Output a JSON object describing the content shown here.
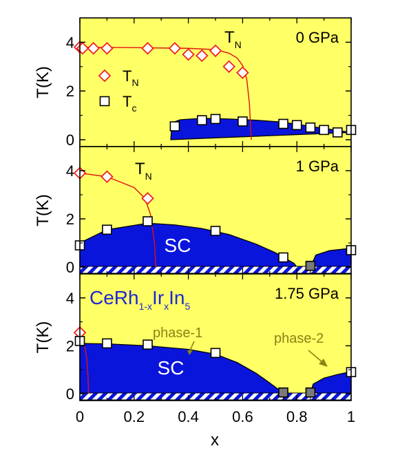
{
  "colors": {
    "background": "#ffff66",
    "sc_fill": "#0a15dc",
    "tn_line": "#e01010",
    "tn_marker": "#f02020",
    "tc_marker": "#000000",
    "phase_text": "#8a8414",
    "compound_text": "#1d27d6"
  },
  "xlabel": "x",
  "x_ticks": [
    "0",
    "0.2",
    "0.4",
    "0.6",
    "0.8",
    "1"
  ],
  "chart_data": [
    {
      "type": "scatter",
      "panel_label": "0 GPa",
      "ylabel": "T(K)",
      "y_ticks": [
        "0",
        "2",
        "4"
      ],
      "xlim": [
        0,
        1
      ],
      "ylim": [
        0,
        5
      ],
      "annotation": {
        "main": "T",
        "sub": "N"
      },
      "legend": [
        {
          "marker": "diamond",
          "main": "T",
          "sub": "N"
        },
        {
          "marker": "square",
          "main": "T",
          "sub": "c"
        }
      ],
      "series": [
        {
          "name": "TN",
          "marker": "diamond",
          "x": [
            0.0,
            0.01,
            0.05,
            0.1,
            0.25,
            0.35,
            0.4,
            0.45,
            0.5,
            0.55,
            0.6
          ],
          "y": [
            3.8,
            3.75,
            3.75,
            3.75,
            3.75,
            3.75,
            3.5,
            3.45,
            3.65,
            3.0,
            2.75
          ]
        },
        {
          "name": "Tc",
          "marker": "square",
          "x": [
            0.35,
            0.45,
            0.5,
            0.6,
            0.75,
            0.8,
            0.85,
            0.9,
            0.95,
            1.0
          ],
          "y": [
            0.55,
            0.8,
            0.85,
            0.75,
            0.65,
            0.6,
            0.5,
            0.4,
            0.3,
            0.4
          ]
        }
      ],
      "tn_curve": {
        "x": [
          0.0,
          0.2,
          0.4,
          0.5,
          0.55,
          0.58,
          0.6,
          0.615,
          0.625,
          0.632
        ],
        "y": [
          3.8,
          3.78,
          3.75,
          3.7,
          3.55,
          3.35,
          3.05,
          2.5,
          1.5,
          0.0
        ]
      },
      "sc_dome": [
        {
          "x": [
            0.335,
            0.34,
            0.37,
            0.45,
            0.55,
            0.65,
            0.75,
            0.85,
            0.95,
            1.0
          ],
          "y": [
            0.0,
            0.7,
            0.82,
            0.88,
            0.85,
            0.8,
            0.72,
            0.55,
            0.38,
            0.3
          ]
        }
      ],
      "hatch_intervals": []
    },
    {
      "type": "scatter",
      "panel_label": "1 GPa",
      "ylabel": "T(K)",
      "y_ticks": [
        "0",
        "2",
        "4"
      ],
      "xlim": [
        0,
        1
      ],
      "ylim": [
        0,
        5
      ],
      "annotation": {
        "main": "T",
        "sub": "N"
      },
      "sc_label": "SC",
      "series": [
        {
          "name": "TN",
          "marker": "diamond",
          "x": [
            0.0,
            0.1,
            0.25
          ],
          "y": [
            3.9,
            3.75,
            2.85
          ]
        },
        {
          "name": "Tc",
          "marker": "square",
          "x": [
            0.0,
            0.1,
            0.25,
            0.5,
            0.75,
            1.0
          ],
          "y": [
            0.9,
            1.55,
            1.9,
            1.5,
            0.4,
            0.7
          ]
        }
      ],
      "open_markers": [
        {
          "x": 0.85,
          "y": 0.05
        }
      ],
      "tn_curve": {
        "x": [
          0.0,
          0.1,
          0.2,
          0.24,
          0.26,
          0.275,
          0.28
        ],
        "y": [
          3.9,
          3.75,
          3.3,
          2.85,
          2.2,
          1.0,
          0.0
        ]
      },
      "sc_dome": [
        {
          "x": [
            0.0,
            0.0,
            0.1,
            0.25,
            0.35,
            0.45,
            0.55,
            0.65,
            0.72,
            0.79,
            0.8
          ],
          "y": [
            0.0,
            1.0,
            1.55,
            1.82,
            1.75,
            1.6,
            1.35,
            0.95,
            0.6,
            0.15,
            0.0
          ]
        },
        {
          "x": [
            0.85,
            0.87,
            0.92,
            1.0,
            1.0
          ],
          "y": [
            0.0,
            0.5,
            0.68,
            0.78,
            0.0
          ]
        }
      ],
      "hatch_intervals": [
        [
          0.0,
          0.85
        ],
        [
          0.85,
          1.0
        ]
      ]
    },
    {
      "type": "scatter",
      "panel_label": "1.75 GPa",
      "ylabel": "T(K)",
      "y_ticks": [
        "0",
        "2",
        "4"
      ],
      "xlim": [
        0,
        1
      ],
      "ylim": [
        0,
        5
      ],
      "compound": {
        "main": "CeRh",
        "s1": "1-x",
        "ir": "Ir",
        "s2": "x",
        "in": "In",
        "s3": "5"
      },
      "phase1": "phase-1",
      "phase2": "phase-2",
      "sc_label": "SC",
      "series": [
        {
          "name": "TN",
          "marker": "diamond",
          "x": [
            0.0
          ],
          "y": [
            2.55
          ]
        },
        {
          "name": "Tc",
          "marker": "square",
          "x": [
            0.0,
            0.1,
            0.25,
            0.5,
            1.0
          ],
          "y": [
            2.2,
            2.1,
            2.05,
            1.7,
            0.9
          ]
        }
      ],
      "open_markers": [
        {
          "x": 0.75,
          "y": 0.05
        },
        {
          "x": 0.85,
          "y": 0.05
        }
      ],
      "tn_curve": {
        "x": [
          0.0,
          0.015,
          0.025,
          0.03,
          0.032
        ],
        "y": [
          2.55,
          2.2,
          1.5,
          0.7,
          0.0
        ]
      },
      "sc_dome": [
        {
          "x": [
            0.0,
            0.0,
            0.1,
            0.25,
            0.4,
            0.5,
            0.58,
            0.65,
            0.7,
            0.735,
            0.75
          ],
          "y": [
            0.0,
            2.1,
            2.08,
            2.0,
            1.85,
            1.65,
            1.3,
            0.85,
            0.45,
            0.15,
            0.0
          ]
        },
        {
          "x": [
            0.85,
            0.86,
            0.9,
            0.95,
            1.0,
            1.0
          ],
          "y": [
            0.0,
            0.4,
            0.65,
            0.8,
            0.92,
            0.0
          ]
        }
      ],
      "hatch_intervals": [
        [
          0.0,
          0.75
        ],
        [
          0.75,
          0.85
        ],
        [
          0.85,
          1.0
        ]
      ]
    }
  ]
}
